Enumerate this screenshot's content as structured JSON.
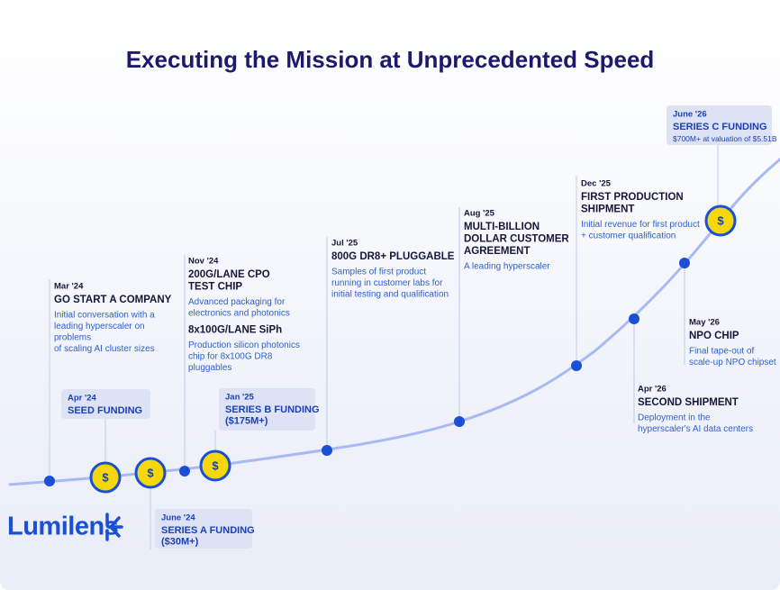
{
  "title": "Executing the Mission at Unprecedented Speed",
  "milestones": [
    {
      "date": "Mar '24",
      "title": [
        "GO START A COMPANY"
      ],
      "description": [
        "Initial conversation with a",
        "leading hyperscaler on",
        "problems",
        "of scaling AI cluster sizes"
      ]
    },
    {
      "date": "Nov '24",
      "title": [
        "200G/LANE CPO",
        "TEST CHIP"
      ],
      "description": [
        "Advanced packaging for",
        "electronics and photonics"
      ],
      "subtitle": "8x100G/LANE SiPh",
      "subdescription": [
        "Production silicon photonics",
        "chip for 8x100G DR8",
        "pluggables"
      ]
    },
    {
      "date": "Jul '25",
      "title": [
        "800G DR8+ PLUGGABLE"
      ],
      "description": [
        "Samples of first product",
        "running in customer labs for",
        "initial testing and qualification"
      ]
    },
    {
      "date": "Aug '25",
      "title": [
        "MULTI-BILLION",
        "DOLLAR CUSTOMER",
        "AGREEMENT"
      ],
      "description": [
        "A leading hyperscaler"
      ]
    },
    {
      "date": "Dec '25",
      "title": [
        "FIRST PRODUCTION",
        "SHIPMENT"
      ],
      "description": [
        "Initial revenue for first product",
        "+ customer qualification"
      ]
    },
    {
      "date": "Apr '26",
      "title": [
        "SECOND SHIPMENT"
      ],
      "description": [
        "Deployment in the",
        "hyperscaler's AI data centers"
      ]
    },
    {
      "date": "May '26",
      "title": [
        "NPO CHIP"
      ],
      "description": [
        "Final tape-out of",
        "scale-up NPO chipset"
      ]
    }
  ],
  "funding": [
    {
      "date": "Apr '24",
      "title": [
        "SEED FUNDING"
      ]
    },
    {
      "date": "June '24",
      "title": [
        "SERIES A FUNDING",
        "($30M+)"
      ]
    },
    {
      "date": "Jan '25",
      "title": [
        "SERIES B FUNDING",
        "($175M+)"
      ]
    },
    {
      "date": "June '26",
      "title": [
        "SERIES C FUNDING"
      ],
      "note": "$700M+ at valuation of $5.51B"
    }
  ],
  "coin_symbol": "$",
  "logo": "Lumilens"
}
